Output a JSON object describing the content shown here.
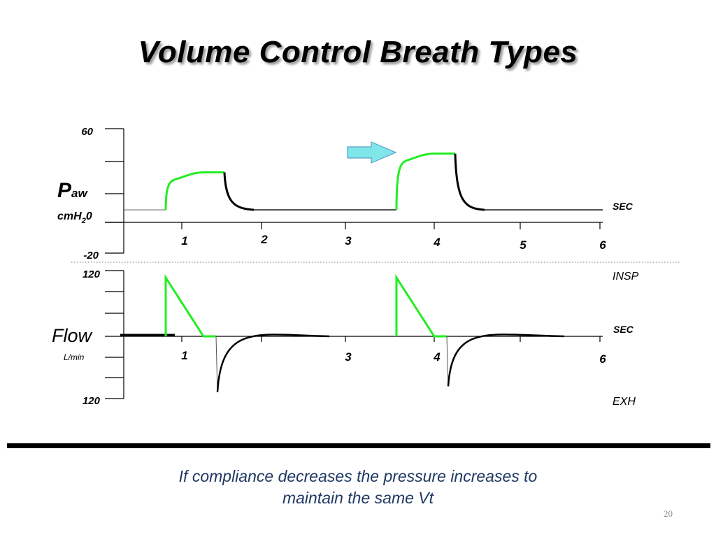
{
  "slide": {
    "title": "Volume Control Breath Types",
    "caption_line1": "If compliance decreases the pressure increases to",
    "caption_line2": "maintain the same Vt",
    "slide_number": "20"
  },
  "colors": {
    "inspiration": "#22ee22",
    "expiration": "#000000",
    "arrow_fill": "#7fe6ea",
    "arrow_stroke": "#5aa0c8",
    "caption": "#1f3864"
  },
  "icons": [
    "right-arrow-icon"
  ],
  "chart_data": [
    {
      "type": "line",
      "name": "pressure",
      "ylabel_main": "P",
      "ylabel_sub": "aw",
      "units_main": "cmH",
      "units_sub": "2",
      "units_tail": "0",
      "xunit": "SEC",
      "ylim": [
        -20,
        60
      ],
      "ymax_label": "60",
      "ymin_label": "-20",
      "xlim": [
        0,
        6
      ],
      "x_ticks": [
        "1",
        "2",
        "3",
        "4",
        "5",
        "6"
      ],
      "baseline": 8,
      "breaths": [
        {
          "start": 0.85,
          "insp_end": 1.55,
          "exp_end": 1.9,
          "plateau": 32
        },
        {
          "start": 3.6,
          "insp_end": 4.3,
          "exp_end": 4.65,
          "plateau": 44
        }
      ],
      "annotation": "right-arrow-icon"
    },
    {
      "type": "line",
      "name": "flow",
      "ylabel_main": "Flow",
      "units": "L/min",
      "xunit": "SEC",
      "top_label": "INSP",
      "bottom_label": "EXH",
      "ylim": [
        -120,
        120
      ],
      "ymax_label": "120",
      "ymin_label": "120",
      "xlim": [
        0,
        6
      ],
      "x_ticks": [
        "1",
        "",
        "3",
        "4",
        "",
        "6"
      ],
      "breaths": [
        {
          "start": 0.85,
          "peak_insp": 100,
          "ramp_end": 1.3,
          "hold_end": 1.45,
          "peak_exp": -95,
          "exp_end": 2.8
        },
        {
          "start": 3.6,
          "peak_insp": 100,
          "ramp_end": 4.05,
          "hold_end": 4.2,
          "peak_exp": -85,
          "exp_end": 5.6
        }
      ]
    }
  ]
}
